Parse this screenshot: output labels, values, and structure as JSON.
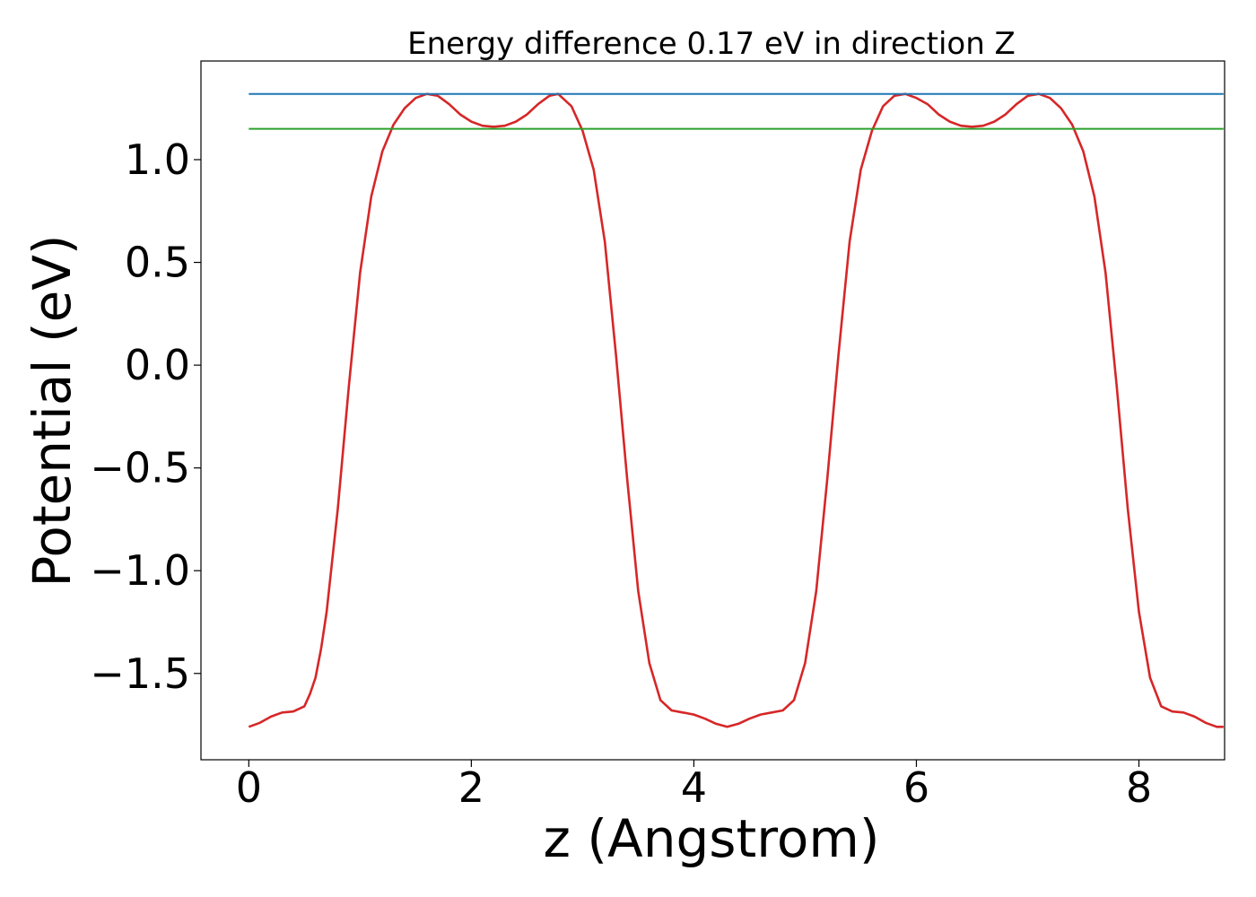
{
  "chart_data": {
    "type": "line",
    "title": "Energy difference 0.17 eV in direction Z",
    "xlabel": "z (Angstrom)",
    "ylabel": "Potential (eV)",
    "xlim": [
      -0.43,
      8.77
    ],
    "ylim": [
      -1.92,
      1.48
    ],
    "x_ticks": [
      0,
      2,
      4,
      6,
      8
    ],
    "y_ticks": [
      -1.5,
      -1.0,
      -0.5,
      0.0,
      0.5,
      1.0
    ],
    "x_tick_labels": [
      "0",
      "2",
      "4",
      "6",
      "8"
    ],
    "y_tick_labels": [
      "−1.5",
      "−1.0",
      "−0.5",
      "0.0",
      "0.5",
      "1.0"
    ],
    "grid": false,
    "legend": "none",
    "series": [
      {
        "color": "#d62728",
        "x": [
          0.0,
          0.1,
          0.2,
          0.3,
          0.4,
          0.5,
          0.55,
          0.6,
          0.65,
          0.7,
          0.8,
          0.9,
          1.0,
          1.1,
          1.2,
          1.3,
          1.4,
          1.5,
          1.6,
          1.7,
          1.8,
          1.9,
          2.0,
          2.1,
          2.2,
          2.3,
          2.4,
          2.5,
          2.6,
          2.7,
          2.78,
          2.9,
          3.0,
          3.1,
          3.2,
          3.3,
          3.4,
          3.5,
          3.6,
          3.7,
          3.8,
          3.9,
          4.0,
          4.1,
          4.2,
          4.3,
          4.4,
          4.5,
          4.6,
          4.7,
          4.8,
          4.9,
          5.0,
          5.1,
          5.2,
          5.3,
          5.4,
          5.5,
          5.6,
          5.7,
          5.8,
          5.9,
          6.0,
          6.1,
          6.2,
          6.3,
          6.4,
          6.5,
          6.6,
          6.7,
          6.8,
          6.9,
          7.0,
          7.1,
          7.2,
          7.3,
          7.4,
          7.5,
          7.6,
          7.7,
          7.8,
          7.9,
          8.0,
          8.1,
          8.2,
          8.3,
          8.4,
          8.5,
          8.6,
          8.7,
          8.76
        ],
        "y": [
          -1.76,
          -1.74,
          -1.71,
          -1.69,
          -1.685,
          -1.66,
          -1.6,
          -1.52,
          -1.38,
          -1.2,
          -0.7,
          -0.1,
          0.45,
          0.82,
          1.04,
          1.17,
          1.25,
          1.3,
          1.32,
          1.31,
          1.27,
          1.22,
          1.185,
          1.165,
          1.16,
          1.165,
          1.185,
          1.22,
          1.27,
          1.31,
          1.32,
          1.26,
          1.14,
          0.95,
          0.6,
          0.05,
          -0.55,
          -1.1,
          -1.45,
          -1.63,
          -1.68,
          -1.69,
          -1.7,
          -1.72,
          -1.745,
          -1.76,
          -1.745,
          -1.72,
          -1.7,
          -1.69,
          -1.68,
          -1.63,
          -1.45,
          -1.1,
          -0.55,
          0.05,
          0.6,
          0.95,
          1.14,
          1.26,
          1.31,
          1.32,
          1.3,
          1.27,
          1.22,
          1.185,
          1.165,
          1.16,
          1.165,
          1.185,
          1.22,
          1.27,
          1.31,
          1.32,
          1.3,
          1.25,
          1.17,
          1.04,
          0.82,
          0.45,
          -0.1,
          -0.7,
          -1.2,
          -1.52,
          -1.66,
          -1.685,
          -1.69,
          -1.71,
          -1.74,
          -1.76,
          -1.76
        ]
      },
      {
        "color": "#1f77b4",
        "x": [
          0.0,
          8.76
        ],
        "y": [
          1.32,
          1.32
        ]
      },
      {
        "color": "#2ca02c",
        "x": [
          0.0,
          8.76
        ],
        "y": [
          1.15,
          1.15
        ]
      }
    ]
  }
}
